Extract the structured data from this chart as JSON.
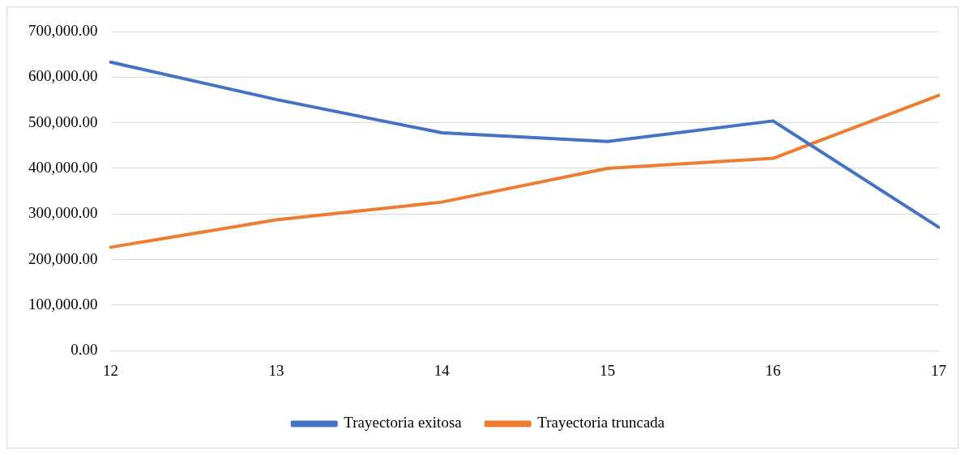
{
  "chart_data": {
    "type": "line",
    "categories": [
      "12",
      "13",
      "14",
      "15",
      "16",
      "17"
    ],
    "series": [
      {
        "name": "Trayectoria exitosa",
        "color": "#4472c4",
        "values": [
          633000,
          551000,
          478000,
          459000,
          504000,
          271000
        ]
      },
      {
        "name": "Trayectoria truncada",
        "color": "#ed7d31",
        "values": [
          227000,
          287000,
          326000,
          400000,
          422000,
          560000
        ]
      }
    ],
    "ylim": [
      0,
      700000
    ],
    "yticks": [
      {
        "value": 0,
        "label": "0.00"
      },
      {
        "value": 100000,
        "label": "100,000.00"
      },
      {
        "value": 200000,
        "label": "200,000.00"
      },
      {
        "value": 300000,
        "label": "300,000.00"
      },
      {
        "value": 400000,
        "label": "400,000.00"
      },
      {
        "value": 500000,
        "label": "500,000.00"
      },
      {
        "value": 600000,
        "label": "600,000.00"
      },
      {
        "value": 700000,
        "label": "700,000.00"
      }
    ],
    "grid": "y",
    "legend": "bottom",
    "marker": "none",
    "line_style": "solid"
  }
}
